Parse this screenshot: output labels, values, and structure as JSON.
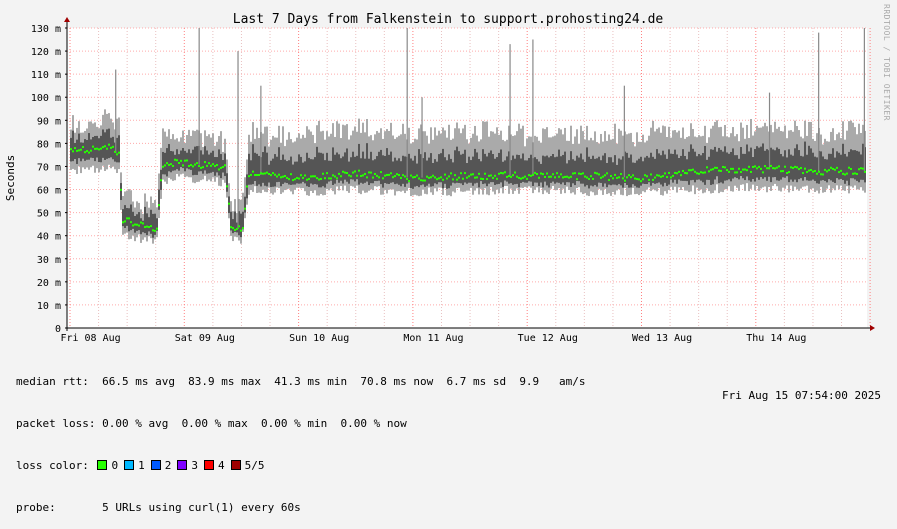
{
  "chart_data": {
    "type": "area",
    "title": "Last 7 Days from Falkenstein to support.prohosting24.de",
    "ylabel": "Seconds",
    "ylim": [
      0,
      130
    ],
    "y_ticks": [
      "0",
      "10 m",
      "20 m",
      "30 m",
      "40 m",
      "50 m",
      "60 m",
      "70 m",
      "80 m",
      "90 m",
      "100 m",
      "110 m",
      "120 m",
      "130 m"
    ],
    "x_labels": [
      "Fri 08 Aug",
      "Sat 09 Aug",
      "Sun 10 Aug",
      "Mon 11 Aug",
      "Tue 12 Aug",
      "Wed 13 Aug",
      "Thu 14 Aug"
    ],
    "x_range_days": [
      0,
      7
    ],
    "grid": true,
    "series": [
      {
        "name": "median rtt",
        "x_days": [
          0.0,
          0.35,
          0.42,
          0.45,
          0.7,
          0.75,
          0.8,
          0.95,
          1.25,
          1.35,
          1.4,
          1.5,
          1.55,
          1.6,
          1.7,
          2.0,
          2.5,
          3.0,
          3.5,
          4.0,
          4.5,
          5.0,
          5.5,
          6.0,
          6.5,
          7.0
        ],
        "values": [
          77,
          78,
          75,
          47,
          43,
          43,
          70,
          72,
          70,
          70,
          45,
          42,
          65,
          67,
          66,
          65,
          67,
          65,
          66,
          66,
          66,
          65,
          68,
          69,
          68,
          68
        ]
      }
    ],
    "envelope_min": [
      66,
      68,
      65,
      38,
      36,
      35,
      62,
      63,
      62,
      60,
      38,
      36,
      57,
      58,
      57,
      57,
      58,
      57,
      57,
      58,
      57,
      57,
      58,
      59,
      58,
      58
    ],
    "envelope_max": [
      90,
      92,
      90,
      60,
      56,
      54,
      88,
      86,
      85,
      82,
      58,
      55,
      85,
      88,
      86,
      86,
      88,
      86,
      87,
      86,
      86,
      86,
      87,
      88,
      87,
      87
    ],
    "spikes": [
      {
        "x_day": 0.4,
        "value": 112
      },
      {
        "x_day": 1.13,
        "value": 130
      },
      {
        "x_day": 1.47,
        "value": 120
      },
      {
        "x_day": 1.67,
        "value": 105
      },
      {
        "x_day": 2.95,
        "value": 130
      },
      {
        "x_day": 3.08,
        "value": 100
      },
      {
        "x_day": 3.85,
        "value": 123
      },
      {
        "x_day": 4.05,
        "value": 125
      },
      {
        "x_day": 4.85,
        "value": 105
      },
      {
        "x_day": 6.12,
        "value": 102
      },
      {
        "x_day": 6.55,
        "value": 128
      },
      {
        "x_day": 6.95,
        "value": 130
      }
    ]
  },
  "stats": {
    "median_rtt": "median rtt:  66.5 ms avg  83.9 ms max  41.3 ms min  70.8 ms now  6.7 ms sd  9.9   am/s",
    "packet_loss": "packet loss: 0.00 % avg  0.00 % max  0.00 % min  0.00 % now",
    "loss_color_label": "loss color:",
    "loss_colors": [
      {
        "label": "0",
        "color": "#26ff00"
      },
      {
        "label": "1",
        "color": "#00b8ff"
      },
      {
        "label": "2",
        "color": "#0059ff"
      },
      {
        "label": "3",
        "color": "#7e00ff"
      },
      {
        "label": "4",
        "color": "#ff0000"
      },
      {
        "label": "5/5",
        "color": "#a00000"
      }
    ],
    "probe": "probe:       5 URLs using curl(1) every 60s",
    "timestamp": "Fri Aug 15 07:54:00 2025"
  },
  "watermark": "RRDTOOL / TOBI OETIKER"
}
